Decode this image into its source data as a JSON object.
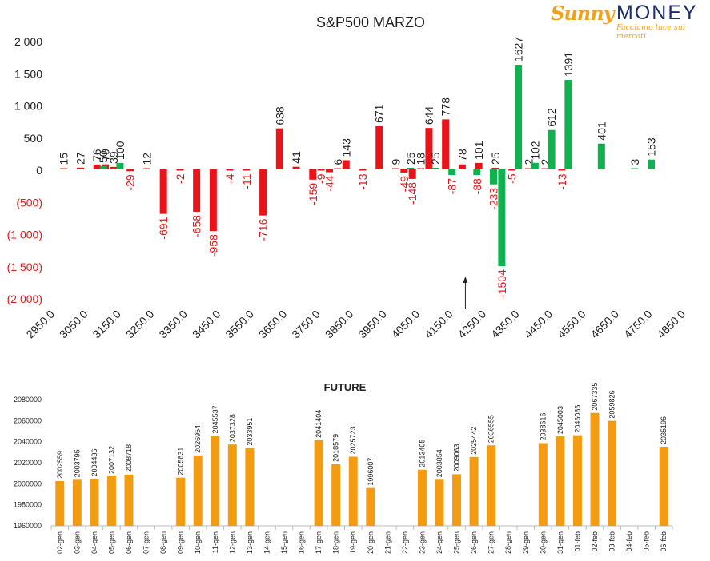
{
  "logo": {
    "name_part1": "Sunny",
    "name_part2": "MONEY",
    "tagline": "Facciamo luce sui mercati"
  },
  "colors": {
    "negative": "#e8141a",
    "positive": "#12b150",
    "future": "#f39c12",
    "axis_negative": "#e8141a",
    "text": "#222222"
  },
  "chart_data": [
    {
      "type": "bar",
      "title": "S&P500 MARZO",
      "ylim": [
        -2000,
        2000
      ],
      "yticks": [
        2000,
        1500,
        1000,
        500,
        0,
        -500,
        -1000,
        -1500,
        -2000
      ],
      "ytick_labels": [
        "2 000",
        "1 500",
        "1 000",
        "500",
        "0",
        "(500)",
        "(1 000)",
        "(1 500)",
        "(2 000)"
      ],
      "x_tick_labels": [
        "2950.0",
        "3050.0",
        "3150.0",
        "3250.0",
        "3350.0",
        "3450.0",
        "3550.0",
        "3650.0",
        "3750.0",
        "3850.0",
        "3950.0",
        "4050.0",
        "4150.0",
        "4250.0",
        "4350.0",
        "4450.0",
        "4550.0",
        "4650.0",
        "4750.0",
        "4850.0"
      ],
      "xlim": [
        2950,
        4850
      ],
      "arrow_annotation_x": 4200,
      "series": [
        {
          "color": "#e8141a",
          "points": [
            {
              "x": 3000,
              "y": 15
            },
            {
              "x": 3050,
              "y": 27
            },
            {
              "x": 3100,
              "y": 76
            },
            {
              "x": 3125,
              "y": 79
            },
            {
              "x": 3150,
              "y": 39
            },
            {
              "x": 3200,
              "y": -29
            },
            {
              "x": 3250,
              "y": 12
            },
            {
              "x": 3300,
              "y": -691
            },
            {
              "x": 3350,
              "y": -2
            },
            {
              "x": 3400,
              "y": -658
            },
            {
              "x": 3450,
              "y": -958
            },
            {
              "x": 3500,
              "y": -4
            },
            {
              "x": 3550,
              "y": -11
            },
            {
              "x": 3600,
              "y": -716
            },
            {
              "x": 3650,
              "y": 638
            },
            {
              "x": 3700,
              "y": 41
            },
            {
              "x": 3750,
              "y": -159
            },
            {
              "x": 3775,
              "y": -9
            },
            {
              "x": 3800,
              "y": -44
            },
            {
              "x": 3825,
              "y": 6
            },
            {
              "x": 3850,
              "y": 143
            },
            {
              "x": 3900,
              "y": -13
            },
            {
              "x": 3950,
              "y": 671
            },
            {
              "x": 4000,
              "y": 9
            },
            {
              "x": 4025,
              "y": -49
            },
            {
              "x": 4050,
              "y": -148
            },
            {
              "x": 4075,
              "y": 18
            },
            {
              "x": 4100,
              "y": 644
            },
            {
              "x": 4150,
              "y": 778
            },
            {
              "x": 4200,
              "y": 78
            },
            {
              "x": 4250,
              "y": 101
            },
            {
              "x": 4300,
              "y": 25
            },
            {
              "x": 4350,
              "y": -5
            },
            {
              "x": 4400,
              "y": 2
            },
            {
              "x": 4450,
              "y": 2
            },
            {
              "x": 4500,
              "y": -13
            }
          ]
        },
        {
          "color": "#12b150",
          "points": [
            {
              "x": 3100,
              "y": 50
            },
            {
              "x": 3150,
              "y": 100
            },
            {
              "x": 4025,
              "y": 25
            },
            {
              "x": 4100,
              "y": 25
            },
            {
              "x": 4150,
              "y": -87
            },
            {
              "x": 4225,
              "y": -88
            },
            {
              "x": 4275,
              "y": -233
            },
            {
              "x": 4300,
              "y": -1504
            },
            {
              "x": 4350,
              "y": 1627
            },
            {
              "x": 4400,
              "y": 102
            },
            {
              "x": 4450,
              "y": 612
            },
            {
              "x": 4500,
              "y": 1391
            },
            {
              "x": 4600,
              "y": 401
            },
            {
              "x": 4700,
              "y": 3
            },
            {
              "x": 4750,
              "y": 153
            }
          ]
        }
      ]
    },
    {
      "type": "bar",
      "title": "FUTURE",
      "ylim": [
        1960000,
        2080000
      ],
      "yticks": [
        2080000,
        2060000,
        2040000,
        2020000,
        2000000,
        1980000,
        1960000
      ],
      "ytick_labels": [
        "2080000",
        "2060000",
        "2040000",
        "2020000",
        "2000000",
        "1980000",
        "1960000"
      ],
      "categories": [
        "02-gen",
        "03-gen",
        "04-gen",
        "05-gen",
        "06-gen",
        "07-gen",
        "08-gen",
        "09-gen",
        "10-gen",
        "11-gen",
        "12-gen",
        "13-gen",
        "14-gen",
        "15-gen",
        "16-gen",
        "17-gen",
        "18-gen",
        "19-gen",
        "20-gen",
        "21-gen",
        "22-gen",
        "23-gen",
        "24-gen",
        "25-gen",
        "26-gen",
        "27-gen",
        "28-gen",
        "29-gen",
        "30-gen",
        "31-gen",
        "01-feb",
        "02-feb",
        "03-feb",
        "04-feb",
        "05-feb",
        "06-feb"
      ],
      "values": [
        2002559,
        2003795,
        2004436,
        2007132,
        2008718,
        null,
        null,
        2005831,
        2026954,
        2045537,
        2037328,
        2033951,
        null,
        null,
        null,
        2041404,
        2018579,
        2025723,
        1996007,
        null,
        null,
        2013405,
        2003854,
        2009063,
        2025442,
        2036555,
        null,
        null,
        2038616,
        2045003,
        2046086,
        2067335,
        2059826,
        null,
        null,
        2035196
      ],
      "value_labels": [
        "2002559",
        "2003795",
        "2004436",
        "2007132",
        "2008718",
        "",
        "",
        "2005831",
        "2026954",
        "2045537",
        "2037328",
        "2033951",
        "",
        "",
        "",
        "2041404",
        "2018579",
        "2025723",
        "1996007",
        "",
        "",
        "2013405",
        "2003854",
        "2009063",
        "2025442",
        "2036555",
        "",
        "",
        "2038616",
        "2045003",
        "2046086",
        "2067335",
        "2059826",
        "",
        "",
        "2035196"
      ]
    }
  ]
}
